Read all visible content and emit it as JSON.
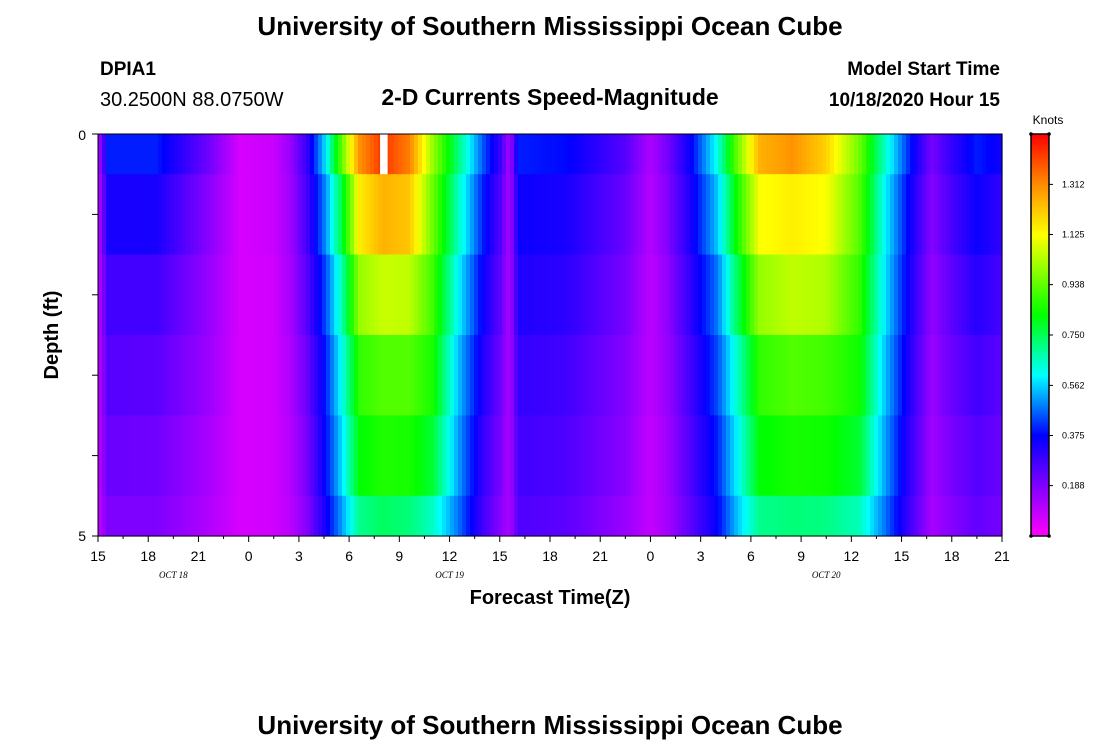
{
  "header": {
    "title": "University of Southern Mississippi Ocean Cube",
    "station_id": "DPIA1",
    "station_coords": "30.2500N 88.0750W",
    "subtitle": "2-D Currents Speed-Magnitude",
    "model_start_label": "Model Start Time",
    "model_start_value": "10/18/2020 Hour 15"
  },
  "footer": {
    "title": "University of Southern Mississippi Ocean Cube"
  },
  "chart_data": {
    "type": "heatmap",
    "title": "2-D Currents Speed-Magnitude",
    "xlabel": "Forecast Time(Z)",
    "ylabel": "Depth (ft)",
    "colorbar_label": "Knots",
    "colorbar_ticks": [
      "0.188",
      "0.375",
      "0.562",
      "0.750",
      "0.938",
      "1.125",
      "1.312"
    ],
    "value_range": [
      0,
      1.5
    ],
    "y_range": [
      0,
      5
    ],
    "y_tick_labels": [
      "0",
      "5"
    ],
    "x_range_hours": [
      0,
      54
    ],
    "x_tick_labels": [
      "15",
      "18",
      "21",
      "0",
      "3",
      "6",
      "9",
      "12",
      "15",
      "18",
      "21",
      "0",
      "3",
      "6",
      "9",
      "12",
      "15",
      "18",
      "21"
    ],
    "date_labels": [
      {
        "text": "OCT 18",
        "hour": 4.5
      },
      {
        "text": "OCT 19",
        "hour": 21
      },
      {
        "text": "OCT 20",
        "hour": 43.5
      }
    ],
    "depth_levels": [
      0.25,
      1.0,
      2.0,
      3.0,
      4.0,
      4.75
    ],
    "speed_keyframes": [
      {
        "hour": 0,
        "speeds": [
          0.1,
          0.09,
          0.09,
          0.09,
          0.09,
          0.09
        ]
      },
      {
        "hour": 0.6,
        "speeds": [
          0.4,
          0.34,
          0.28,
          0.25,
          0.22,
          0.19
        ]
      },
      {
        "hour": 3.5,
        "speeds": [
          0.4,
          0.34,
          0.28,
          0.24,
          0.21,
          0.19
        ]
      },
      {
        "hour": 6.5,
        "speeds": [
          0.22,
          0.18,
          0.16,
          0.15,
          0.13,
          0.12
        ]
      },
      {
        "hour": 8.5,
        "speeds": [
          0.06,
          0.06,
          0.06,
          0.06,
          0.06,
          0.06
        ]
      },
      {
        "hour": 10.5,
        "speeds": [
          0.08,
          0.08,
          0.07,
          0.07,
          0.07,
          0.07
        ]
      },
      {
        "hour": 11.5,
        "speeds": [
          0.15,
          0.14,
          0.13,
          0.12,
          0.11,
          0.1
        ]
      },
      {
        "hour": 12.5,
        "speeds": [
          0.3,
          0.28,
          0.25,
          0.22,
          0.2,
          0.18
        ]
      },
      {
        "hour": 13.6,
        "speeds": [
          0.58,
          0.5,
          0.44,
          0.4,
          0.38,
          0.35
        ]
      },
      {
        "hour": 14.6,
        "speeds": [
          0.95,
          0.78,
          0.68,
          0.62,
          0.58,
          0.52
        ]
      },
      {
        "hour": 15.6,
        "speeds": [
          1.3,
          1.15,
          1.0,
          0.88,
          0.82,
          0.7
        ]
      },
      {
        "hour": 17.0,
        "speeds": [
          1.43,
          1.25,
          1.06,
          0.92,
          0.86,
          0.74
        ]
      },
      {
        "hour": 18.6,
        "speeds": [
          1.33,
          1.22,
          1.05,
          0.92,
          0.85,
          0.72
        ]
      },
      {
        "hour": 20.0,
        "speeds": [
          1.0,
          0.95,
          0.9,
          0.85,
          0.78,
          0.65
        ]
      },
      {
        "hour": 21.5,
        "speeds": [
          0.72,
          0.66,
          0.6,
          0.55,
          0.52,
          0.48
        ]
      },
      {
        "hour": 23.0,
        "speeds": [
          0.45,
          0.4,
          0.36,
          0.33,
          0.3,
          0.28
        ]
      },
      {
        "hour": 24.0,
        "speeds": [
          0.3,
          0.26,
          0.24,
          0.22,
          0.2,
          0.18
        ]
      },
      {
        "hour": 24.6,
        "speeds": [
          0.12,
          0.12,
          0.12,
          0.12,
          0.12,
          0.12
        ]
      },
      {
        "hour": 25.1,
        "speeds": [
          0.4,
          0.36,
          0.33,
          0.3,
          0.28,
          0.26
        ]
      },
      {
        "hour": 28.0,
        "speeds": [
          0.38,
          0.34,
          0.31,
          0.28,
          0.26,
          0.24
        ]
      },
      {
        "hour": 31.5,
        "speeds": [
          0.25,
          0.22,
          0.2,
          0.18,
          0.17,
          0.15
        ]
      },
      {
        "hour": 33.0,
        "speeds": [
          0.12,
          0.11,
          0.1,
          0.1,
          0.09,
          0.09
        ]
      },
      {
        "hour": 34.0,
        "speeds": [
          0.2,
          0.18,
          0.16,
          0.15,
          0.14,
          0.13
        ]
      },
      {
        "hour": 35.5,
        "speeds": [
          0.38,
          0.35,
          0.32,
          0.29,
          0.27,
          0.25
        ]
      },
      {
        "hour": 37.0,
        "speeds": [
          0.62,
          0.55,
          0.48,
          0.44,
          0.4,
          0.37
        ]
      },
      {
        "hour": 38.2,
        "speeds": [
          0.95,
          0.85,
          0.75,
          0.65,
          0.6,
          0.55
        ]
      },
      {
        "hour": 39.5,
        "speeds": [
          1.25,
          1.12,
          1.0,
          0.88,
          0.82,
          0.7
        ]
      },
      {
        "hour": 41.5,
        "speeds": [
          1.3,
          1.15,
          1.05,
          0.92,
          0.85,
          0.72
        ]
      },
      {
        "hour": 43.5,
        "speeds": [
          1.2,
          1.12,
          1.03,
          0.9,
          0.84,
          0.71
        ]
      },
      {
        "hour": 45.5,
        "speeds": [
          0.95,
          0.92,
          0.88,
          0.84,
          0.78,
          0.66
        ]
      },
      {
        "hour": 47.0,
        "speeds": [
          0.65,
          0.6,
          0.58,
          0.55,
          0.52,
          0.48
        ]
      },
      {
        "hour": 48.5,
        "speeds": [
          0.4,
          0.36,
          0.34,
          0.32,
          0.3,
          0.28
        ]
      },
      {
        "hour": 49.8,
        "speeds": [
          0.2,
          0.18,
          0.16,
          0.15,
          0.14,
          0.13
        ]
      },
      {
        "hour": 51.0,
        "speeds": [
          0.3,
          0.27,
          0.24,
          0.22,
          0.2,
          0.18
        ]
      },
      {
        "hour": 52.5,
        "speeds": [
          0.4,
          0.36,
          0.32,
          0.28,
          0.25,
          0.23
        ]
      },
      {
        "hour": 54.0,
        "speeds": [
          0.35,
          0.3,
          0.27,
          0.24,
          0.22,
          0.2
        ]
      }
    ],
    "missing_data": [
      {
        "hour_start": 16.85,
        "hour_end": 17.3,
        "depth_start": 0,
        "depth_end": 0.5
      }
    ]
  }
}
